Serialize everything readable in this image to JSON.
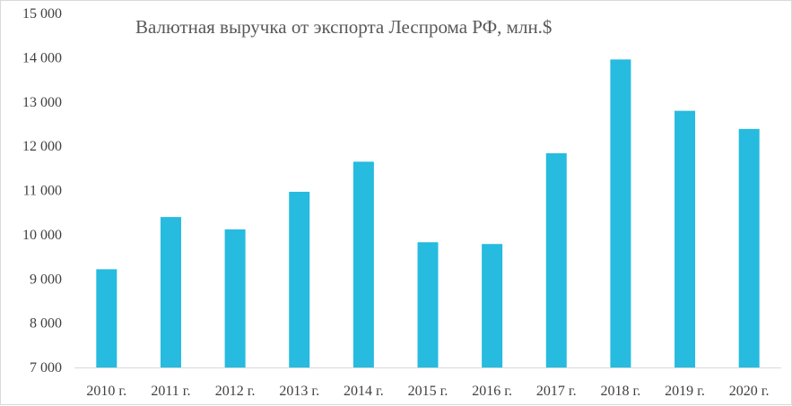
{
  "chart_data": {
    "type": "bar",
    "title": "Валютная выручка от экспорта Леспрома РФ, млн.$",
    "xlabel": "",
    "ylabel": "",
    "categories": [
      "2010 г.",
      "2011 г.",
      "2012 г.",
      "2013 г.",
      "2014 г.",
      "2015 г.",
      "2016 г.",
      "2017 г.",
      "2018 г.",
      "2019 г.",
      "2020 г."
    ],
    "values": [
      9220,
      10400,
      10120,
      10970,
      11650,
      9830,
      9790,
      11840,
      13960,
      12800,
      12390
    ],
    "ylim": [
      7000,
      15000
    ],
    "yticks": [
      7000,
      8000,
      9000,
      10000,
      11000,
      12000,
      13000,
      14000,
      15000
    ],
    "ytick_labels": [
      "7 000",
      "8 000",
      "9 000",
      "10 000",
      "11 000",
      "12 000",
      "13 000",
      "14 000",
      "15 000"
    ],
    "grid": false,
    "legend": "none",
    "bar_color": "#26bbdf"
  }
}
